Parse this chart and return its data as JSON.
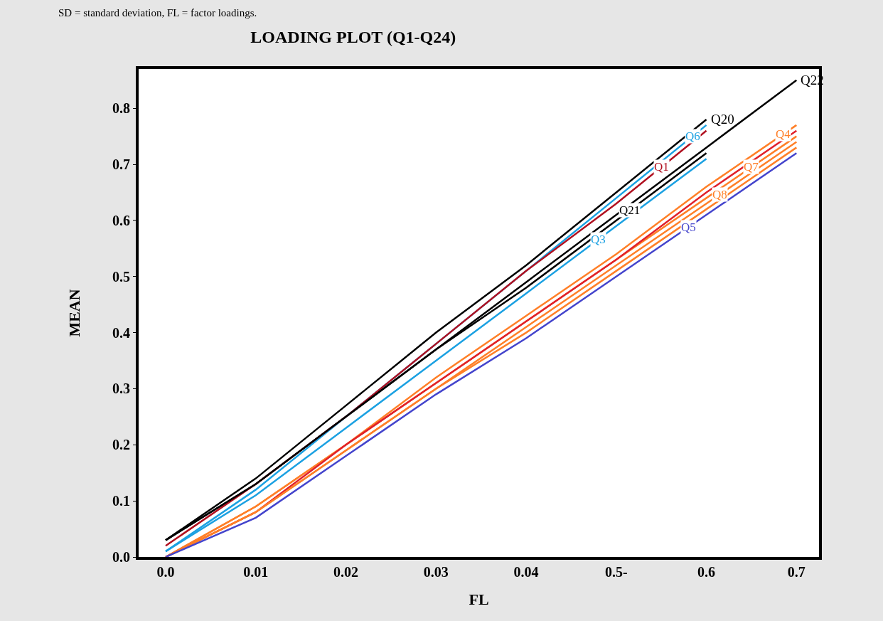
{
  "chart_data": {
    "type": "line",
    "title": "LOADING PLOT (Q1-Q24)",
    "xlabel": "FL",
    "ylabel": "MEAN",
    "annotations": [
      "SD = standard deviation, FL = factor loadings."
    ],
    "categories": [
      "0.0",
      "0.01",
      "0.02",
      "0.03",
      "0.04",
      "0.5-",
      "0.6",
      "0.7"
    ],
    "ylim": [
      0,
      0.87
    ],
    "yticks": [
      {
        "value": 0,
        "label": "0.0"
      },
      0.1,
      0.2,
      0.3,
      0.4,
      0.5,
      0.6,
      0.7,
      0.8
    ],
    "grid": false,
    "legend": false,
    "marker": "none",
    "line_style": "solid",
    "series": [
      {
        "name": "Q20",
        "color": "#000000",
        "values": [
          0.03,
          0.14,
          0.27,
          0.4,
          0.52,
          0.65,
          0.78,
          null
        ]
      },
      {
        "name": "Q22",
        "color": "#000000",
        "values": [
          0.03,
          0.13,
          0.25,
          0.37,
          0.49,
          0.61,
          0.73,
          0.85
        ]
      },
      {
        "name": "Q6",
        "color": "#1ba1e2",
        "values": [
          0.01,
          0.12,
          0.25,
          0.38,
          0.51,
          0.64,
          0.77,
          null
        ]
      },
      {
        "name": "Q1",
        "color": "#b01020",
        "values": [
          0.02,
          0.13,
          0.25,
          0.38,
          0.51,
          0.63,
          0.76,
          null
        ]
      },
      {
        "name": "Q21",
        "color": "#000000",
        "values": [
          0.03,
          0.13,
          0.25,
          0.37,
          0.48,
          0.6,
          0.72,
          null
        ]
      },
      {
        "name": "Q3",
        "color": "#1ba1e2",
        "values": [
          0.01,
          0.11,
          0.23,
          0.35,
          0.47,
          0.59,
          0.71,
          null
        ]
      },
      {
        "name": "Q4",
        "color": "#ff7f27",
        "values": [
          0.0,
          0.09,
          0.2,
          0.32,
          0.43,
          0.54,
          0.66,
          0.77
        ]
      },
      {
        "name": "Q7",
        "color": "#ff7f27",
        "values": [
          0.0,
          0.09,
          0.2,
          0.31,
          0.42,
          0.53,
          0.64,
          0.75
        ]
      },
      {
        "color": "#e0202a",
        "values": [
          0.0,
          0.08,
          0.2,
          0.31,
          0.42,
          0.53,
          0.65,
          0.76
        ]
      },
      {
        "name": "Q8",
        "color": "#ff7f27",
        "values": [
          0.0,
          0.08,
          0.19,
          0.3,
          0.41,
          0.52,
          0.63,
          0.74
        ]
      },
      {
        "color": "#ff7f27",
        "values": [
          0.0,
          0.08,
          0.19,
          0.3,
          0.4,
          0.51,
          0.62,
          0.73
        ]
      },
      {
        "name": "Q5",
        "color": "#4444cc",
        "values": [
          0.0,
          0.07,
          0.18,
          0.29,
          0.39,
          0.5,
          0.61,
          0.72
        ]
      }
    ]
  }
}
